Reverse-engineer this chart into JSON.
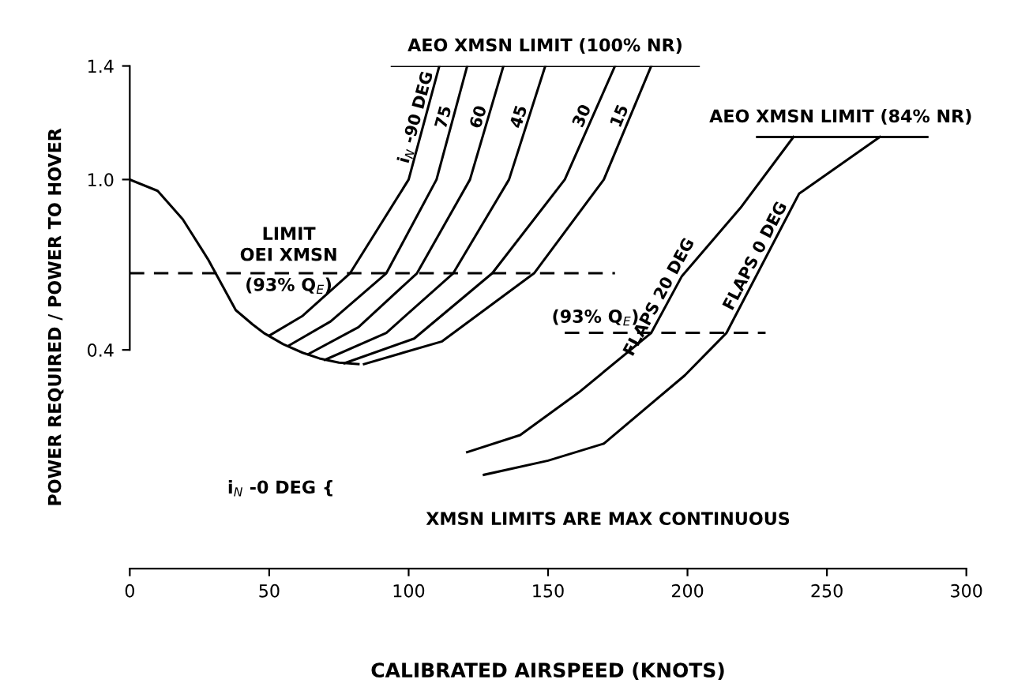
{
  "chart_data": {
    "type": "line",
    "xlabel": "CALIBRATED AIRSPEED (KNOTS)",
    "ylabel": "POWER REQUIRED / POWER TO HOVER",
    "xlim": [
      0,
      300
    ],
    "xticks": [
      0,
      50,
      100,
      150,
      200,
      250,
      300
    ],
    "ylim": [
      -0.37,
      1.4
    ],
    "yticks": [
      0.4,
      {
        "value": 1.0,
        "label": "1.0"
      },
      1.4
    ],
    "series": [
      {
        "color": "#000000",
        "x": [
          0,
          10,
          19,
          28,
          38,
          44,
          48,
          55,
          62,
          68,
          75,
          82
        ],
        "values": [
          1.0,
          0.96,
          0.86,
          0.72,
          0.54,
          0.49,
          0.46,
          0.42,
          0.39,
          0.37,
          0.355,
          0.35
        ]
      },
      {
        "name": "i$_{N}$ -90 DEG",
        "color": "#000000",
        "x": [
          50,
          62,
          79,
          100,
          111
        ],
        "values": [
          0.45,
          0.52,
          0.67,
          1.0,
          1.4
        ]
      },
      {
        "name": "75",
        "color": "#000000",
        "x": [
          57,
          72,
          92,
          110,
          121
        ],
        "values": [
          0.415,
          0.5,
          0.67,
          1.0,
          1.4
        ]
      },
      {
        "name": "60",
        "color": "#000000",
        "x": [
          64,
          82,
          103,
          122,
          134
        ],
        "values": [
          0.385,
          0.48,
          0.67,
          1.0,
          1.4
        ]
      },
      {
        "name": "45",
        "color": "#000000",
        "x": [
          70,
          92,
          116,
          136,
          149
        ],
        "values": [
          0.365,
          0.46,
          0.67,
          1.0,
          1.4
        ]
      },
      {
        "name": "30",
        "color": "#000000",
        "x": [
          77,
          102,
          130,
          156,
          174
        ],
        "values": [
          0.353,
          0.44,
          0.67,
          1.0,
          1.4
        ]
      },
      {
        "name": "15",
        "color": "#000000",
        "x": [
          84,
          112,
          145,
          170,
          187
        ],
        "values": [
          0.35,
          0.43,
          0.67,
          1.0,
          1.4
        ]
      },
      {
        "color": "#000000",
        "x": [
          94,
          204
        ],
        "values": [
          1.4,
          1.4
        ]
      },
      {
        "color": "#000000",
        "x": [
          0,
          174
        ],
        "values": [
          0.67,
          0.67
        ],
        "line_style": "dashed"
      },
      {
        "name": "FLAPS 20 DEG",
        "color": "#000000",
        "x": [
          121,
          140,
          161,
          187,
          198,
          219,
          238
        ],
        "values": [
          0.04,
          0.1,
          0.25,
          0.46,
          0.66,
          0.9,
          1.15
        ]
      },
      {
        "name": "FLAPS 0 DEG",
        "color": "#000000",
        "x": [
          127,
          150,
          170,
          199,
          214,
          240,
          269
        ],
        "values": [
          -0.04,
          0.01,
          0.07,
          0.31,
          0.46,
          0.95,
          1.15
        ]
      },
      {
        "color": "#000000",
        "x": [
          225,
          286
        ],
        "values": [
          1.15,
          1.15
        ]
      },
      {
        "color": "#000000",
        "x": [
          156,
          228
        ],
        "values": [
          0.46,
          0.46
        ],
        "line_style": "dashed"
      }
    ],
    "annotations": [
      {
        "text": "AEO XMSN LIMIT (100% NR)",
        "x": 149,
        "y": 1.4
      },
      {
        "text": "AEO XMSN LIMIT (84% NR)",
        "x": 255,
        "y": 1.15
      },
      {
        "text": "LIMIT\nOEI XMSN",
        "x": 57,
        "y": 0.67
      },
      {
        "text": "(93% Q$_{E}$)",
        "x": 57,
        "y": 0.67
      },
      {
        "text": "(93% Q$_{E}$)",
        "x": 167,
        "y": 0.46
      },
      "i$_{N}$ -0 DEG {",
      "XMSN LIMITS ARE MAX CONTINUOUS"
    ]
  }
}
